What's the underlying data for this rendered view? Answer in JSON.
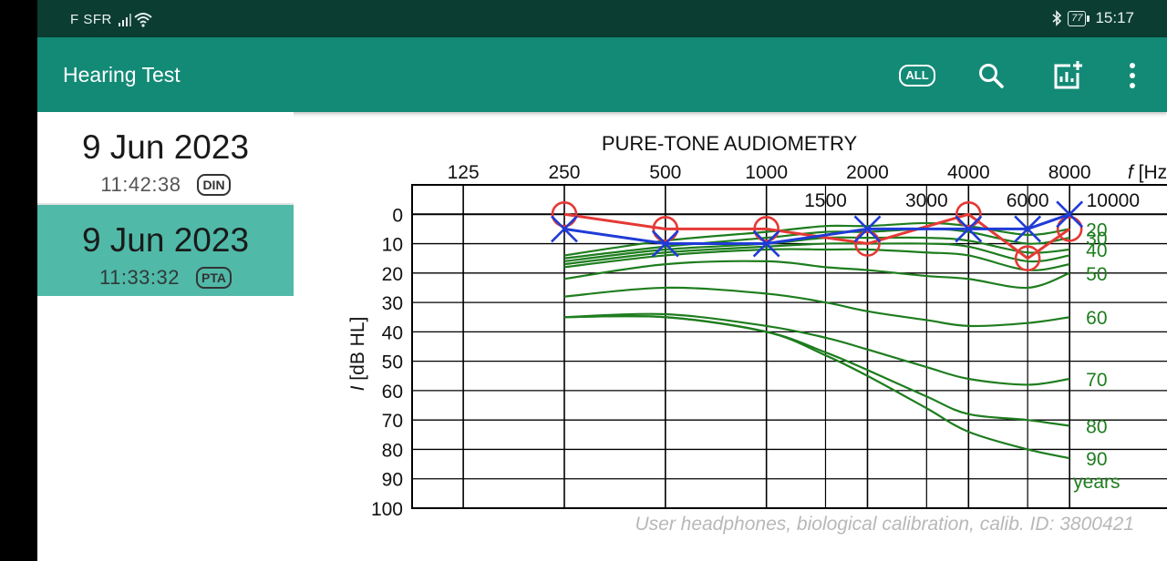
{
  "status_bar": {
    "carrier": "F SFR",
    "bluetooth_icon": "bluetooth-icon",
    "battery": "77",
    "time": "15:17"
  },
  "app_bar": {
    "title": "Hearing Test",
    "all_label": "ALL",
    "actions": [
      "all-icon",
      "search-icon",
      "add-chart-icon",
      "more-vert-icon"
    ]
  },
  "tests": [
    {
      "date": "9 Jun 2023",
      "time": "11:42:38",
      "type": "DIN",
      "selected": false
    },
    {
      "date": "9 Jun 2023",
      "time": "11:33:32",
      "type": "PTA",
      "selected": true
    }
  ],
  "chart_data": {
    "type": "line",
    "title": "PURE-TONE AUDIOMETRY",
    "xlabel_prefix": "f",
    "xlabel_unit": "[Hz]",
    "ylabel_prefix": "I",
    "ylabel_unit": "[dB HL]",
    "x_major_ticks": [
      125,
      250,
      500,
      1000,
      2000,
      4000,
      8000
    ],
    "x_minor_ticks": [
      1500,
      3000,
      6000
    ],
    "x_extra_label": "10000",
    "x_range": [
      88,
      16000
    ],
    "y_ticks": [
      0,
      10,
      20,
      30,
      40,
      50,
      60,
      70,
      80,
      90,
      100
    ],
    "y_range": [
      -10,
      100
    ],
    "y_inverted": true,
    "grid": true,
    "series": [
      {
        "ear": "right",
        "marker": "circle",
        "color": "#e53935",
        "x": [
          250,
          500,
          1000,
          2000,
          4000,
          6000,
          8000
        ],
        "y": [
          0,
          5,
          5,
          10,
          0,
          15,
          5
        ]
      },
      {
        "ear": "left",
        "marker": "cross",
        "color": "#1f3bd6",
        "x": [
          250,
          500,
          1000,
          2000,
          4000,
          6000,
          8000
        ],
        "y": [
          5,
          10,
          10,
          5,
          5,
          5,
          0
        ]
      }
    ],
    "age_curves": {
      "color": "#1e7d1e",
      "x": [
        250,
        500,
        1000,
        1500,
        2000,
        3000,
        4000,
        6000,
        8000
      ],
      "curves": [
        {
          "age": "20",
          "y": [
            14,
            9,
            6,
            4,
            4,
            3,
            4,
            7,
            5
          ]
        },
        {
          "age": "30",
          "y": [
            15,
            11,
            8,
            6,
            6,
            5,
            6,
            10,
            8
          ]
        },
        {
          "age": "40",
          "y": [
            16,
            12,
            10,
            8,
            8,
            8,
            9,
            13,
            12
          ]
        },
        {
          "age": "",
          "y": [
            17,
            13,
            11,
            10,
            10,
            10,
            11,
            16,
            14
          ]
        },
        {
          "age": "",
          "y": [
            18,
            14,
            12,
            12,
            12,
            13,
            14,
            19,
            17
          ]
        },
        {
          "age": "50",
          "y": [
            22,
            17,
            16,
            18,
            19,
            21,
            22,
            25,
            20
          ]
        },
        {
          "age": "60",
          "y": [
            28,
            25,
            27,
            30,
            33,
            36,
            38,
            37,
            35
          ]
        },
        {
          "age": "70",
          "y": [
            35,
            34,
            38,
            42,
            46,
            52,
            56,
            58,
            56
          ]
        },
        {
          "age": "80",
          "y": [
            35,
            35,
            40,
            47,
            53,
            62,
            68,
            70,
            72
          ]
        },
        {
          "age": "90",
          "y": [
            35,
            35,
            40,
            48,
            55,
            66,
            74,
            80,
            83
          ]
        }
      ],
      "unit_label": "years"
    },
    "footer": "User headphones, biological calibration, calib. ID: 3800421"
  }
}
